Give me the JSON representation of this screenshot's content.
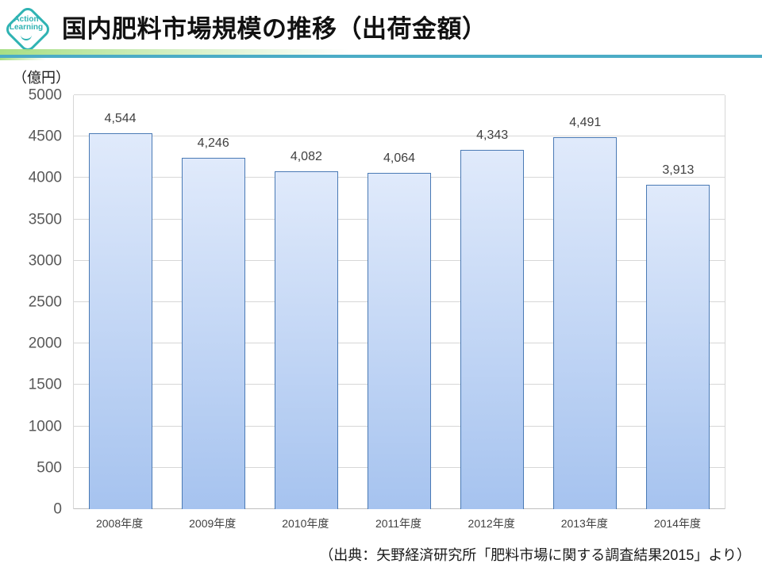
{
  "header": {
    "logo": {
      "line1": "Action",
      "line2": "Learning"
    },
    "title": "国内肥料市場規模の推移（出荷金額）"
  },
  "chart_data": {
    "type": "bar",
    "title": "国内肥料市場規模の推移（出荷金額）",
    "unit_label": "（億円）",
    "categories": [
      "2008年度",
      "2009年度",
      "2010年度",
      "2011年度",
      "2012年度",
      "2013年度",
      "2014年度"
    ],
    "values": [
      4544,
      4246,
      4082,
      4064,
      4343,
      4491,
      3913
    ],
    "value_labels": [
      "4,544",
      "4,246",
      "4,082",
      "4,064",
      "4,343",
      "4,491",
      "3,913"
    ],
    "xlabel": "",
    "ylabel": "（億円）",
    "ylim": [
      0,
      5000
    ],
    "ytick_step": 500,
    "grid": true,
    "legend": false
  },
  "footer": {
    "source": "（出典：矢野経済研究所「肥料市場に関する調査結果2015」より）"
  },
  "colors": {
    "bar_top": "#e0eafb",
    "bar_bottom": "#a6c3ef",
    "bar_border": "#4a7ab5",
    "grid": "#d7d7d7",
    "axis_text": "#595959",
    "header_teal": "#4bacc6",
    "header_green": "#a8df85",
    "logo_teal": "#2fb3b3"
  }
}
